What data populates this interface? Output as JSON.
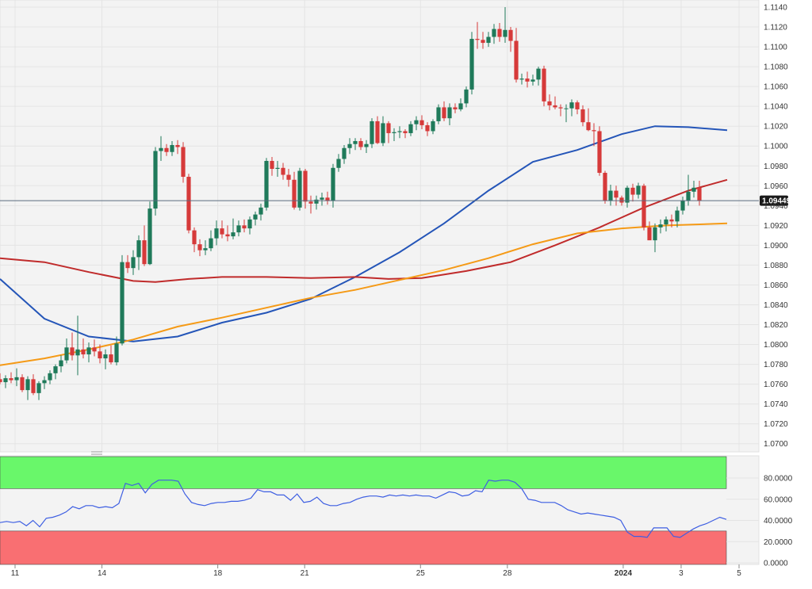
{
  "chart_data": [
    {
      "type": "candlestick",
      "title": "",
      "ylim": [
        1.069,
        1.1148
      ],
      "y_ticks": [
        "1.1140",
        "1.1120",
        "1.1100",
        "1.1080",
        "1.1060",
        "1.1040",
        "1.1020",
        "1.1000",
        "1.0980",
        "1.0960",
        "1.0940",
        "1.0920",
        "1.0900",
        "1.0880",
        "1.0860",
        "1.0840",
        "1.0820",
        "1.0800",
        "1.0780",
        "1.0760",
        "1.0740",
        "1.0720",
        "1.0700"
      ],
      "x_ticks": [
        {
          "label": "11",
          "day": 0
        },
        {
          "label": "14",
          "day": 3
        },
        {
          "label": "18",
          "day": 7
        },
        {
          "label": "21",
          "day": 10
        },
        {
          "label": "25",
          "day": 14
        },
        {
          "label": "28",
          "day": 17
        },
        {
          "label": "2024",
          "day": 21,
          "bold": true
        },
        {
          "label": "3",
          "day": 23
        },
        {
          "label": "5",
          "day": 25
        }
      ],
      "last_price": {
        "label": "1.09449",
        "value": 1.09449
      },
      "up_color": "#1f7a5a",
      "down_color": "#d63a3a",
      "candles": [
        [
          1.0765,
          1.0771,
          1.076,
          1.0762
        ],
        [
          1.0762,
          1.0769,
          1.0756,
          1.0766
        ],
        [
          1.0766,
          1.0772,
          1.0761,
          1.0764
        ],
        [
          1.0764,
          1.0776,
          1.0758,
          1.0767
        ],
        [
          1.0767,
          1.077,
          1.0752,
          1.0754
        ],
        [
          1.0754,
          1.0768,
          1.0744,
          1.0765
        ],
        [
          1.0765,
          1.077,
          1.0749,
          1.0751
        ],
        [
          1.0751,
          1.0763,
          1.0744,
          1.0761
        ],
        [
          1.0761,
          1.0768,
          1.0755,
          1.0764
        ],
        [
          1.0764,
          1.0774,
          1.076,
          1.0771
        ],
        [
          1.0771,
          1.078,
          1.0765,
          1.0778
        ],
        [
          1.0778,
          1.0789,
          1.0772,
          1.0784
        ],
        [
          1.0784,
          1.0806,
          1.0781,
          1.0797
        ],
        [
          1.0797,
          1.0812,
          1.0784,
          1.0789
        ],
        [
          1.0789,
          1.0829,
          1.0769,
          1.0795
        ],
        [
          1.0795,
          1.0806,
          1.0786,
          1.079
        ],
        [
          1.079,
          1.0802,
          1.0782,
          1.0797
        ],
        [
          1.0797,
          1.0805,
          1.0788,
          1.0793
        ],
        [
          1.0793,
          1.08,
          1.0781,
          1.0786
        ],
        [
          1.0786,
          1.0795,
          1.0775,
          1.079
        ],
        [
          1.079,
          1.0799,
          1.078,
          1.0782
        ],
        [
          1.0782,
          1.0808,
          1.0779,
          1.0801
        ],
        [
          1.0801,
          1.089,
          1.0799,
          1.0883
        ],
        [
          1.0883,
          1.089,
          1.0872,
          1.0877
        ],
        [
          1.0877,
          1.0895,
          1.087,
          1.0888
        ],
        [
          1.0888,
          1.091,
          1.0875,
          1.0905
        ],
        [
          1.0905,
          1.092,
          1.0879,
          1.0881
        ],
        [
          1.0881,
          1.0944,
          1.088,
          1.0937
        ],
        [
          1.0937,
          1.0999,
          1.093,
          1.0995
        ],
        [
          1.0995,
          1.101,
          1.0985,
          1.0998
        ],
        [
          1.0998,
          1.1002,
          1.099,
          1.0994
        ],
        [
          1.0994,
          1.1005,
          1.099,
          1.1001
        ],
        [
          1.1001,
          1.1006,
          1.0992,
          1.0999
        ],
        [
          1.0999,
          1.1004,
          1.0963,
          1.0969
        ],
        [
          1.0969,
          1.0972,
          1.0912,
          1.0915
        ],
        [
          1.0915,
          1.0918,
          1.0893,
          1.0901
        ],
        [
          1.0901,
          1.0906,
          1.0889,
          1.0895
        ],
        [
          1.0895,
          1.0905,
          1.089,
          1.0897
        ],
        [
          1.0897,
          1.0915,
          1.0894,
          1.0907
        ],
        [
          1.0907,
          1.0925,
          1.09,
          1.0917
        ],
        [
          1.0917,
          1.0925,
          1.0907,
          1.0911
        ],
        [
          1.0911,
          1.092,
          1.0904,
          1.0909
        ],
        [
          1.0909,
          1.0927,
          1.0906,
          1.0913
        ],
        [
          1.0913,
          1.0925,
          1.0909,
          1.092
        ],
        [
          1.092,
          1.0926,
          1.0913,
          1.0917
        ],
        [
          1.0917,
          1.0929,
          1.0911,
          1.0926
        ],
        [
          1.0926,
          1.0934,
          1.092,
          1.0931
        ],
        [
          1.0931,
          1.0942,
          1.0925,
          1.0938
        ],
        [
          1.0938,
          1.0988,
          1.0935,
          1.0985
        ],
        [
          1.0985,
          1.0989,
          1.097,
          1.0977
        ],
        [
          1.0977,
          1.0985,
          1.0969,
          1.0978
        ],
        [
          1.0978,
          1.0983,
          1.0966,
          1.0971
        ],
        [
          1.0971,
          1.0977,
          1.0959,
          1.0966
        ],
        [
          1.0966,
          1.0974,
          1.0936,
          1.0938
        ],
        [
          1.0938,
          1.0978,
          1.0935,
          1.0975
        ],
        [
          1.0975,
          1.0977,
          1.0937,
          1.0944
        ],
        [
          1.0944,
          1.095,
          1.0932,
          1.0942
        ],
        [
          1.0942,
          1.095,
          1.0936,
          1.0946
        ],
        [
          1.0946,
          1.0953,
          1.094,
          1.0948
        ],
        [
          1.0948,
          1.0954,
          1.0941,
          1.0945
        ],
        [
          1.0945,
          1.0982,
          1.0938,
          1.0978
        ],
        [
          1.0978,
          1.0992,
          1.0974,
          1.0987
        ],
        [
          1.0987,
          1.1001,
          1.0982,
          1.0998
        ],
        [
          1.0998,
          1.1008,
          1.0992,
          1.1002
        ],
        [
          1.1002,
          1.1008,
          1.0996,
          1.1005
        ],
        [
          1.1005,
          1.1008,
          1.0996,
          1.0999
        ],
        [
          1.0999,
          1.1006,
          1.0993,
          1.1002
        ],
        [
          1.1002,
          1.1028,
          1.0998,
          1.1025
        ],
        [
          1.1025,
          1.103,
          1.1002,
          1.1003
        ],
        [
          1.1003,
          1.103,
          1.1,
          1.1023
        ],
        [
          1.1023,
          1.1025,
          1.1003,
          1.1013
        ],
        [
          1.1013,
          1.1018,
          1.1005,
          1.1014
        ],
        [
          1.1014,
          1.102,
          1.1008,
          1.1015
        ],
        [
          1.1015,
          1.1017,
          1.1008,
          1.1013
        ],
        [
          1.1013,
          1.1025,
          1.101,
          1.1022
        ],
        [
          1.1022,
          1.103,
          1.1016,
          1.1026
        ],
        [
          1.1026,
          1.1031,
          1.1017,
          1.1021
        ],
        [
          1.1021,
          1.1024,
          1.101,
          1.1015
        ],
        [
          1.1015,
          1.1027,
          1.1012,
          1.1025
        ],
        [
          1.1025,
          1.1042,
          1.1022,
          1.1039
        ],
        [
          1.1039,
          1.1045,
          1.1025,
          1.1028
        ],
        [
          1.1028,
          1.1043,
          1.1021,
          1.1039
        ],
        [
          1.1039,
          1.1043,
          1.1033,
          1.1037
        ],
        [
          1.1037,
          1.1048,
          1.1035,
          1.1043
        ],
        [
          1.1043,
          1.106,
          1.1039,
          1.1057
        ],
        [
          1.1057,
          1.1115,
          1.1052,
          1.1108
        ],
        [
          1.1108,
          1.1125,
          1.1098,
          1.1107
        ],
        [
          1.1107,
          1.1115,
          1.1098,
          1.1104
        ],
        [
          1.1104,
          1.1115,
          1.11,
          1.111
        ],
        [
          1.111,
          1.1123,
          1.1103,
          1.1118
        ],
        [
          1.1118,
          1.1124,
          1.1105,
          1.111
        ],
        [
          1.111,
          1.114,
          1.1104,
          1.1117
        ],
        [
          1.1117,
          1.112,
          1.1095,
          1.1106
        ],
        [
          1.1106,
          1.1119,
          1.1064,
          1.1067
        ],
        [
          1.1067,
          1.1073,
          1.1062,
          1.1068
        ],
        [
          1.1068,
          1.1075,
          1.1059,
          1.1065
        ],
        [
          1.1065,
          1.1072,
          1.1061,
          1.1067
        ],
        [
          1.1067,
          1.108,
          1.1061,
          1.1078
        ],
        [
          1.1078,
          1.1081,
          1.104,
          1.1045
        ],
        [
          1.1045,
          1.1052,
          1.1036,
          1.1041
        ],
        [
          1.1041,
          1.105,
          1.1037,
          1.1039
        ],
        [
          1.1039,
          1.1042,
          1.103,
          1.1038
        ],
        [
          1.1038,
          1.1042,
          1.1024,
          1.1038
        ],
        [
          1.1038,
          1.1047,
          1.103,
          1.1044
        ],
        [
          1.1044,
          1.1046,
          1.1032,
          1.1037
        ],
        [
          1.1037,
          1.1041,
          1.102,
          1.1024
        ],
        [
          1.1024,
          1.1038,
          1.1015,
          1.1016
        ],
        [
          1.1016,
          1.1023,
          1.1,
          1.1015
        ],
        [
          1.1015,
          1.102,
          1.097,
          1.0973
        ],
        [
          1.0973,
          1.0975,
          1.0942,
          1.0945
        ],
        [
          1.0945,
          1.0961,
          1.094,
          1.0955
        ],
        [
          1.0955,
          1.096,
          1.094,
          1.0948
        ],
        [
          1.0948,
          1.095,
          1.094,
          1.0943
        ],
        [
          1.0943,
          1.096,
          1.0938,
          1.0958
        ],
        [
          1.0958,
          1.0962,
          1.0944,
          1.0951
        ],
        [
          1.0951,
          1.0963,
          1.0947,
          1.096
        ],
        [
          1.096,
          1.0962,
          1.0915,
          1.0918
        ],
        [
          1.0918,
          1.0924,
          1.0908,
          1.0905
        ],
        [
          1.0905,
          1.0922,
          1.0893,
          1.0918
        ],
        [
          1.0918,
          1.0926,
          1.0912,
          1.0921
        ],
        [
          1.0921,
          1.0929,
          1.0914,
          1.0926
        ],
        [
          1.0926,
          1.0931,
          1.0918,
          1.0924
        ],
        [
          1.0924,
          1.0939,
          1.0918,
          1.0935
        ],
        [
          1.0935,
          1.0949,
          1.0931,
          1.0945
        ],
        [
          1.0945,
          1.0971,
          1.094,
          1.0954
        ],
        [
          1.0954,
          1.0965,
          1.0948,
          1.0958
        ],
        [
          1.0958,
          1.0965,
          1.094,
          1.0945
        ]
      ],
      "moving_averages": [
        {
          "color": "#2455b8",
          "points": [
            [
              0,
              1.0866
            ],
            [
              8,
              1.0826
            ],
            [
              16,
              1.0808
            ],
            [
              24,
              1.0803
            ],
            [
              32,
              1.0808
            ],
            [
              40,
              1.0822
            ],
            [
              48,
              1.0832
            ],
            [
              56,
              1.0846
            ],
            [
              64,
              1.0868
            ],
            [
              72,
              1.0893
            ],
            [
              80,
              1.0922
            ],
            [
              88,
              1.0955
            ],
            [
              96,
              1.0984
            ],
            [
              104,
              1.0996
            ],
            [
              112,
              1.1012
            ],
            [
              118,
              1.102
            ],
            [
              124,
              1.1019
            ],
            [
              131,
              1.1016
            ]
          ]
        },
        {
          "color": "#c02b2b",
          "points": [
            [
              0,
              1.0887
            ],
            [
              8,
              1.0883
            ],
            [
              16,
              1.0873
            ],
            [
              24,
              1.0864
            ],
            [
              28,
              1.0863
            ],
            [
              34,
              1.0866
            ],
            [
              40,
              1.0868
            ],
            [
              48,
              1.0868
            ],
            [
              56,
              1.0867
            ],
            [
              64,
              1.0868
            ],
            [
              70,
              1.0866
            ],
            [
              76,
              1.0867
            ],
            [
              84,
              1.0874
            ],
            [
              92,
              1.0883
            ],
            [
              100,
              1.09
            ],
            [
              108,
              1.0918
            ],
            [
              116,
              1.0938
            ],
            [
              124,
              1.0955
            ],
            [
              131,
              1.0966
            ]
          ]
        },
        {
          "color": "#f59a16",
          "points": [
            [
              0,
              1.0779
            ],
            [
              8,
              1.0786
            ],
            [
              16,
              1.0795
            ],
            [
              24,
              1.0805
            ],
            [
              32,
              1.0818
            ],
            [
              40,
              1.0827
            ],
            [
              48,
              1.0837
            ],
            [
              56,
              1.0847
            ],
            [
              64,
              1.0855
            ],
            [
              72,
              1.0865
            ],
            [
              80,
              1.0875
            ],
            [
              88,
              1.0887
            ],
            [
              96,
              1.0901
            ],
            [
              104,
              1.0912
            ],
            [
              112,
              1.0917
            ],
            [
              120,
              1.092
            ],
            [
              131,
              1.0922
            ]
          ]
        }
      ]
    },
    {
      "type": "line",
      "title": "",
      "ylim": [
        0,
        100
      ],
      "y_ticks": [
        "80.0000",
        "60.0000",
        "40.0000",
        "20.0000",
        "0.0000"
      ],
      "overbought": 70,
      "oversold": 30,
      "overbought_color": "#69f76a",
      "oversold_color": "#f96f72",
      "line_color": "#3d5ee2",
      "series": [
        {
          "values": [
            38,
            39,
            38,
            39,
            35,
            40,
            34,
            42,
            43,
            45,
            48,
            53,
            51,
            54,
            54,
            52,
            53,
            52,
            56,
            75,
            73,
            75,
            66,
            74,
            78,
            78,
            78,
            77,
            65,
            57,
            55,
            54,
            56,
            57,
            57,
            58,
            58,
            59,
            61,
            69,
            67,
            67,
            64,
            64,
            59,
            65,
            57,
            58,
            62,
            56,
            54,
            54,
            56,
            57,
            60,
            62,
            63,
            63,
            62,
            64,
            63,
            64,
            63,
            64,
            63,
            63,
            61,
            64,
            67,
            66,
            63,
            64,
            68,
            67,
            78,
            77,
            78,
            78,
            76,
            70,
            60,
            59,
            57,
            57,
            57,
            54,
            50,
            48,
            46,
            47,
            46,
            45,
            44,
            43,
            40,
            29,
            25,
            25,
            24,
            33,
            33,
            33,
            25,
            24,
            28,
            32,
            35,
            37,
            40,
            43,
            41
          ]
        }
      ]
    }
  ]
}
